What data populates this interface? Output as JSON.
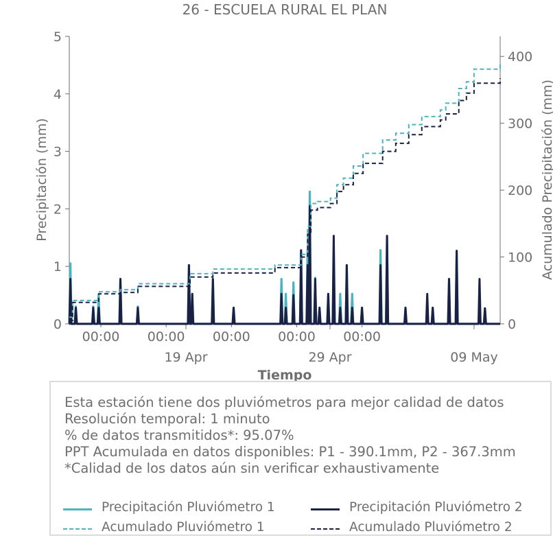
{
  "chart_data": {
    "type": "line",
    "title": "26 - ESCUELA RURAL EL PLAN",
    "xlabel": "Tiempo",
    "ylabel": "Precipitación (mm)",
    "y2label": "Acumulado Precipitación (mm)",
    "ylim": [
      0,
      5
    ],
    "y2lim": [
      0,
      430
    ],
    "y_ticks": [
      "0",
      "1",
      "2",
      "3",
      "4",
      "5"
    ],
    "y2_ticks": [
      "0",
      "100",
      "200",
      "300",
      "400"
    ],
    "x_range": [
      "2025-04-09",
      "2025-05-12"
    ],
    "x_ticks_minor": [
      "00:00",
      "00:00",
      "00:00",
      "00:00",
      "00:00"
    ],
    "x_ticks_major": [
      "19 Apr",
      "29 Apr",
      "09 May"
    ],
    "colors": {
      "p1": "#4fb3bf",
      "p2": "#1b2144",
      "axis": "#6e6e6e"
    },
    "series": [
      {
        "name": "Precipitación Pluviómetro 1",
        "style": "solid",
        "axis": "left",
        "x": [
          "2025-04-09T02:00",
          "2025-04-09T12:00",
          "2025-04-10T20:00",
          "2025-04-11T06:00",
          "2025-04-12T22:00",
          "2025-04-14T06:00",
          "2025-04-18T04:00",
          "2025-04-18T10:00",
          "2025-04-20T00:00",
          "2025-04-21T14:00",
          "2025-04-25T06:00",
          "2025-04-25T14:00",
          "2025-04-26T04:00",
          "2025-04-26T18:00",
          "2025-04-27T06:00",
          "2025-04-27T10:00",
          "2025-04-27T20:00",
          "2025-04-28T04:00",
          "2025-04-28T20:00",
          "2025-04-29T06:00",
          "2025-04-29T18:00",
          "2025-04-30T06:00",
          "2025-04-30T16:00",
          "2025-05-01T10:00",
          "2025-05-02T20:00",
          "2025-05-03T08:00",
          "2025-05-04T18:00",
          "2025-05-06T10:00",
          "2025-05-06T20:00",
          "2025-05-08T02:00",
          "2025-05-08T16:00",
          "2025-05-10T10:00",
          "2025-05-10T20:00"
        ],
        "values": [
          1.05,
          0.3,
          0.3,
          0.5,
          0.78,
          0.3,
          1.02,
          0.52,
          0.78,
          0.28,
          0.78,
          0.52,
          0.72,
          1.2,
          1.28,
          2.3,
          0.8,
          0.28,
          0.52,
          1.02,
          0.52,
          1.02,
          0.52,
          0.28,
          1.28,
          1.52,
          0.28,
          0.28,
          0.28,
          0.78,
          1.27,
          0.27,
          0.27
        ]
      },
      {
        "name": "Precipitación Pluviómetro 2",
        "style": "solid",
        "axis": "left",
        "x": [
          "2025-04-09T02:00",
          "2025-04-09T12:00",
          "2025-04-10T20:00",
          "2025-04-11T06:00",
          "2025-04-12T22:00",
          "2025-04-14T06:00",
          "2025-04-18T04:00",
          "2025-04-18T10:00",
          "2025-04-20T00:00",
          "2025-04-21T14:00",
          "2025-04-25T06:00",
          "2025-04-25T14:00",
          "2025-04-26T04:00",
          "2025-04-26T18:00",
          "2025-04-27T06:00",
          "2025-04-27T10:00",
          "2025-04-27T20:00",
          "2025-04-28T04:00",
          "2025-04-28T20:00",
          "2025-04-29T06:00",
          "2025-04-29T18:00",
          "2025-04-30T06:00",
          "2025-04-30T16:00",
          "2025-05-01T10:00",
          "2025-05-02T20:00",
          "2025-05-03T08:00",
          "2025-05-04T18:00",
          "2025-05-06T10:00",
          "2025-05-06T20:00",
          "2025-05-08T02:00",
          "2025-05-08T16:00",
          "2025-05-10T10:00",
          "2025-05-10T20:00"
        ],
        "values": [
          0.78,
          0.28,
          0.28,
          0.28,
          0.78,
          0.28,
          1.02,
          0.52,
          0.78,
          0.28,
          0.52,
          0.28,
          0.5,
          1.28,
          1.02,
          2.05,
          0.78,
          0.28,
          0.52,
          1.53,
          0.28,
          1.02,
          0.28,
          0.28,
          1.02,
          1.53,
          0.28,
          0.52,
          0.28,
          0.78,
          1.27,
          0.78,
          0.27
        ]
      },
      {
        "name": "Acumulado Pluviómetro 1",
        "style": "dashed",
        "axis": "right",
        "x": [
          "2025-04-09T00:00",
          "2025-04-09T06:00",
          "2025-04-11T06:00",
          "2025-04-12T22:00",
          "2025-04-14T06:00",
          "2025-04-18T06:00",
          "2025-04-20T00:00",
          "2025-04-24T18:00",
          "2025-04-26T18:00",
          "2025-04-27T06:00",
          "2025-04-27T12:00",
          "2025-04-28T00:00",
          "2025-04-29T00:00",
          "2025-04-29T12:00",
          "2025-04-30T00:00",
          "2025-04-30T18:00",
          "2025-05-01T12:00",
          "2025-05-03T00:00",
          "2025-05-04T00:00",
          "2025-05-05T00:00",
          "2025-05-06T00:00",
          "2025-05-07T10:00",
          "2025-05-07T20:00",
          "2025-05-08T20:00",
          "2025-05-09T10:00",
          "2025-05-10T00:00",
          "2025-05-12T00:00"
        ],
        "values": [
          10,
          35,
          48,
          51,
          60,
          75,
          82,
          88,
          104,
          146,
          180,
          183,
          188,
          208,
          218,
          236,
          255,
          275,
          285,
          298,
          310,
          320,
          330,
          352,
          362,
          381,
          390.1
        ]
      },
      {
        "name": "Acumulado Pluviómetro 2",
        "style": "dashed",
        "axis": "right",
        "x": [
          "2025-04-09T00:00",
          "2025-04-09T06:00",
          "2025-04-11T06:00",
          "2025-04-12T22:00",
          "2025-04-14T06:00",
          "2025-04-18T06:00",
          "2025-04-20T00:00",
          "2025-04-24T18:00",
          "2025-04-26T18:00",
          "2025-04-27T06:00",
          "2025-04-27T12:00",
          "2025-04-28T00:00",
          "2025-04-29T00:00",
          "2025-04-29T12:00",
          "2025-04-30T00:00",
          "2025-04-30T18:00",
          "2025-05-01T12:00",
          "2025-05-03T00:00",
          "2025-05-04T00:00",
          "2025-05-05T00:00",
          "2025-05-06T00:00",
          "2025-05-07T10:00",
          "2025-05-07T20:00",
          "2025-05-08T20:00",
          "2025-05-09T10:00",
          "2025-05-10T00:00",
          "2025-05-12T00:00"
        ],
        "values": [
          5,
          32,
          45,
          47,
          56,
          70,
          76,
          84,
          100,
          134,
          170,
          174,
          180,
          198,
          208,
          225,
          240,
          258,
          270,
          283,
          295,
          305,
          314,
          334,
          345,
          360,
          367.3
        ]
      }
    ]
  },
  "info": {
    "line1": "Esta estación tiene dos pluviómetros para mejor calidad de datos",
    "line2": "Resolución temporal: 1 minuto",
    "line3": "% de datos transmitidos*: 95.07%",
    "line4": "PPT Acumulada en datos disponibles: P1 - 390.1mm, P2 - 367.3mm",
    "line5": "*Calidad de los datos aún sin verificar exhaustivamente"
  },
  "legend": {
    "p1": "Precipitación Pluviómetro 1",
    "p2": "Precipitación Pluviómetro 2",
    "a1": "Acumulado Pluviómetro 1",
    "a2": "Acumulado Pluviómetro 2"
  }
}
